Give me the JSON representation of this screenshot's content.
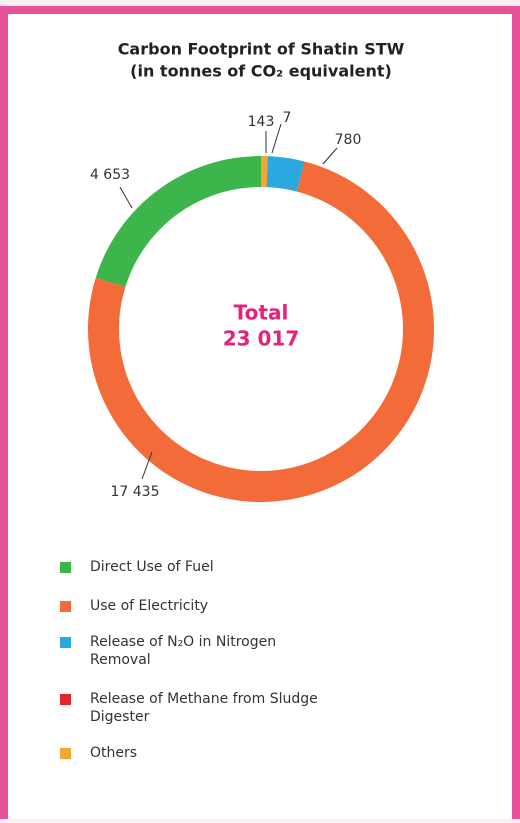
{
  "chart_data": {
    "type": "donut",
    "title": "Carbon Footprint of Shatin STW",
    "subtitle": "(in tonnes of CO₂ equivalent)",
    "center_title": "Total",
    "center_value": "23 017",
    "series": [
      {
        "name": "Direct Use of Fuel",
        "color": "#3cb54a",
        "values": [
          4653
        ],
        "value_labels": [
          "4 653"
        ]
      },
      {
        "name": "Use of Electricity",
        "color": "#f26b38",
        "values": [
          17435
        ],
        "value_labels": [
          "17 435"
        ]
      },
      {
        "name": "Release of N₂O in Nitrogen Removal",
        "color": "#29a9e0",
        "values": [
          780
        ],
        "value_labels": [
          "780"
        ]
      },
      {
        "name": "Release of Methane from Sludge Digester",
        "color": "#e3262b",
        "values": [
          7
        ],
        "value_labels": [
          "7"
        ]
      },
      {
        "name": "Others",
        "color": "#f5a533",
        "values": [
          143
        ],
        "value_labels": [
          "143"
        ]
      }
    ]
  }
}
